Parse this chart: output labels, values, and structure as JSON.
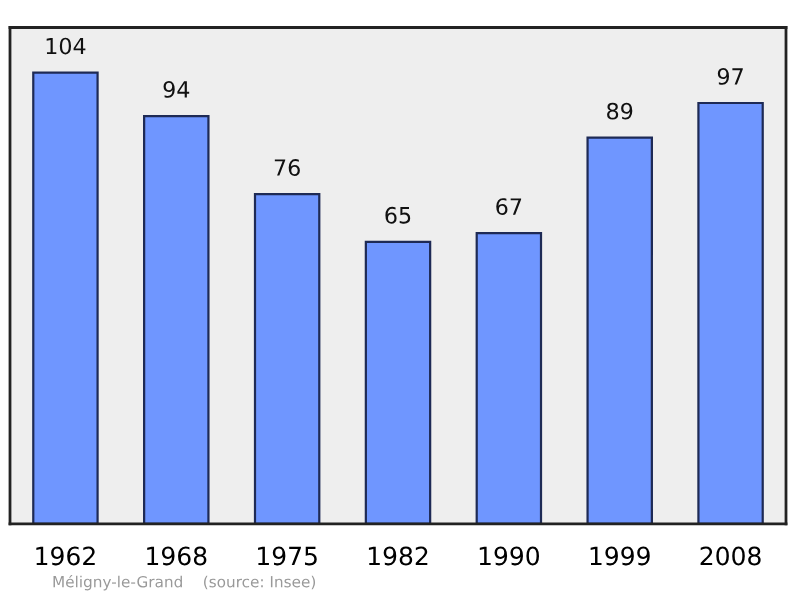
{
  "chart_data": {
    "type": "bar",
    "categories": [
      "1962",
      "1968",
      "1975",
      "1982",
      "1990",
      "1999",
      "2008"
    ],
    "values": [
      104,
      94,
      76,
      65,
      67,
      89,
      97
    ],
    "color": "#6f96ff",
    "data_labels": true,
    "grid": false,
    "legend": false,
    "tick_labels": "x",
    "annotations": [
      "Méligny-le-Grand    (source: Insee)"
    ]
  }
}
